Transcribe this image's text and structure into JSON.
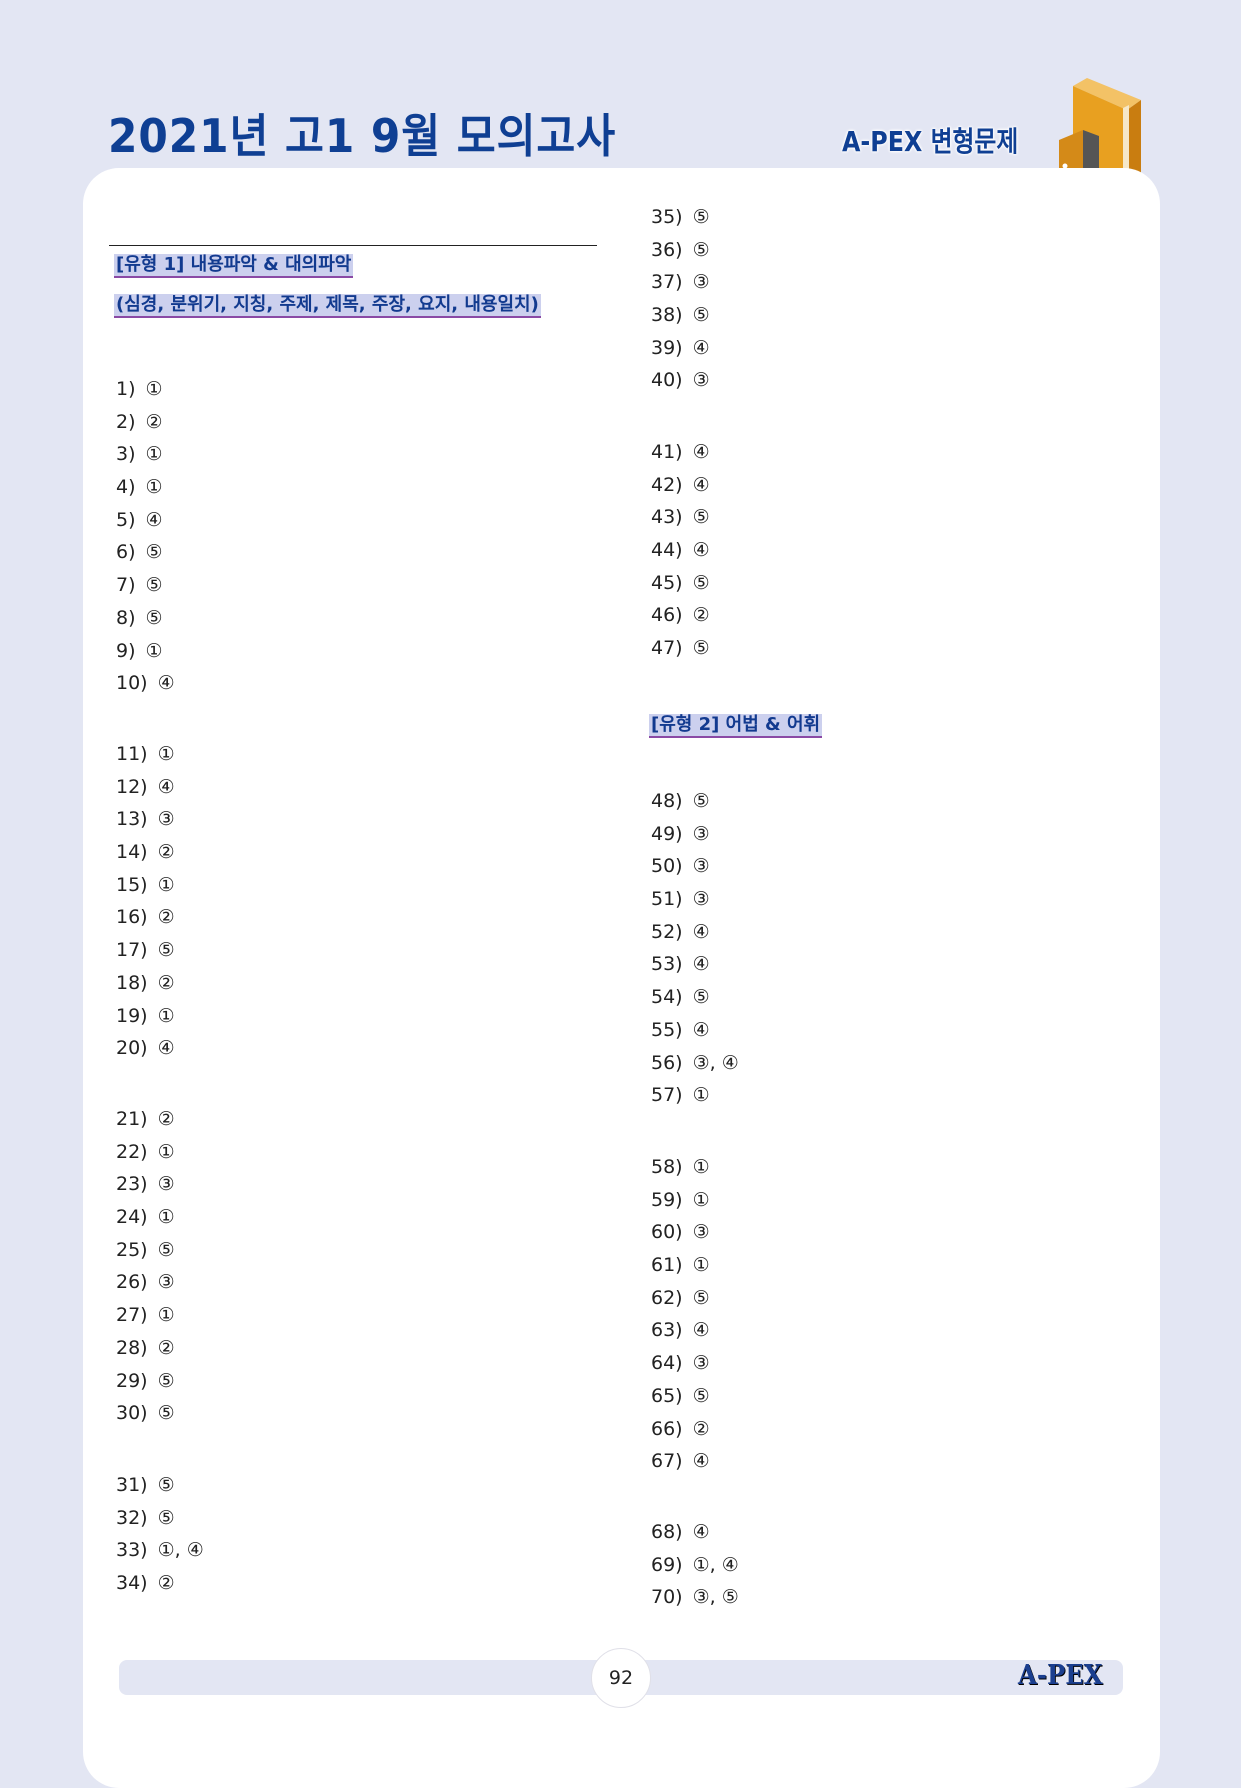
{
  "header": {
    "title": "2021년 고1 9월 모의고사",
    "logo_text": "A-PEX 변형문제",
    "book_icon": "book-with-door-icon"
  },
  "colors": {
    "title": "#0f3f93",
    "background": "#e3e6f3",
    "highlight": "#ccd0ee",
    "underline": "#8a4aa5"
  },
  "left_column": {
    "section_title": "[유형 1] 내용파악 & 대의파악",
    "section_subtitle": "(심경, 분위기, 지칭, 주제, 제목, 주장, 요지, 내용일치)",
    "groups": [
      [
        {
          "n": "1)",
          "a": "①"
        },
        {
          "n": "2)",
          "a": "②"
        },
        {
          "n": "3)",
          "a": "①"
        },
        {
          "n": "4)",
          "a": "①"
        },
        {
          "n": "5)",
          "a": "④"
        },
        {
          "n": "6)",
          "a": "⑤"
        },
        {
          "n": "7)",
          "a": "⑤"
        },
        {
          "n": "8)",
          "a": "⑤"
        },
        {
          "n": "9)",
          "a": "①"
        },
        {
          "n": "10)",
          "a": "④"
        }
      ],
      [
        {
          "n": "11)",
          "a": "①"
        },
        {
          "n": "12)",
          "a": "④"
        },
        {
          "n": "13)",
          "a": "③"
        },
        {
          "n": "14)",
          "a": "②"
        },
        {
          "n": "15)",
          "a": "①"
        },
        {
          "n": "16)",
          "a": "②"
        },
        {
          "n": "17)",
          "a": "⑤"
        },
        {
          "n": "18)",
          "a": "②"
        },
        {
          "n": "19)",
          "a": "①"
        },
        {
          "n": "20)",
          "a": "④"
        }
      ],
      [
        {
          "n": "21)",
          "a": "②"
        },
        {
          "n": "22)",
          "a": "①"
        },
        {
          "n": "23)",
          "a": "③"
        },
        {
          "n": "24)",
          "a": "①"
        },
        {
          "n": "25)",
          "a": "⑤"
        },
        {
          "n": "26)",
          "a": "③"
        },
        {
          "n": "27)",
          "a": "①"
        },
        {
          "n": "28)",
          "a": "②"
        },
        {
          "n": "29)",
          "a": "⑤"
        },
        {
          "n": "30)",
          "a": "⑤"
        }
      ],
      [
        {
          "n": "31)",
          "a": "⑤"
        },
        {
          "n": "32)",
          "a": "⑤"
        },
        {
          "n": "33)",
          "a": "①, ④"
        },
        {
          "n": "34)",
          "a": "②"
        }
      ]
    ]
  },
  "right_column": {
    "section_title": "[유형 2] 어법 & 어휘",
    "groups": [
      [
        {
          "n": "35)",
          "a": "⑤"
        },
        {
          "n": "36)",
          "a": "⑤"
        },
        {
          "n": "37)",
          "a": "③"
        },
        {
          "n": "38)",
          "a": "⑤"
        },
        {
          "n": "39)",
          "a": "④"
        },
        {
          "n": "40)",
          "a": "③"
        }
      ],
      [
        {
          "n": "41)",
          "a": "④"
        },
        {
          "n": "42)",
          "a": "④"
        },
        {
          "n": "43)",
          "a": "⑤"
        },
        {
          "n": "44)",
          "a": "④"
        },
        {
          "n": "45)",
          "a": "⑤"
        },
        {
          "n": "46)",
          "a": "②"
        },
        {
          "n": "47)",
          "a": "⑤"
        }
      ],
      [
        {
          "n": "48)",
          "a": "⑤"
        },
        {
          "n": "49)",
          "a": "③"
        },
        {
          "n": "50)",
          "a": "③"
        },
        {
          "n": "51)",
          "a": "③"
        },
        {
          "n": "52)",
          "a": "④"
        },
        {
          "n": "53)",
          "a": "④"
        },
        {
          "n": "54)",
          "a": "⑤"
        },
        {
          "n": "55)",
          "a": "④"
        },
        {
          "n": "56)",
          "a": "③, ④"
        },
        {
          "n": "57)",
          "a": "①"
        }
      ],
      [
        {
          "n": "58)",
          "a": "①"
        },
        {
          "n": "59)",
          "a": "①"
        },
        {
          "n": "60)",
          "a": "③"
        },
        {
          "n": "61)",
          "a": "①"
        },
        {
          "n": "62)",
          "a": "⑤"
        },
        {
          "n": "63)",
          "a": "④"
        },
        {
          "n": "64)",
          "a": "③"
        },
        {
          "n": "65)",
          "a": "⑤"
        },
        {
          "n": "66)",
          "a": "②"
        },
        {
          "n": "67)",
          "a": "④"
        }
      ],
      [
        {
          "n": "68)",
          "a": "④"
        },
        {
          "n": "69)",
          "a": "①, ④"
        },
        {
          "n": "70)",
          "a": "③, ⑤"
        }
      ]
    ]
  },
  "footer": {
    "page_number": "92",
    "logo_text": "A-PEX"
  }
}
